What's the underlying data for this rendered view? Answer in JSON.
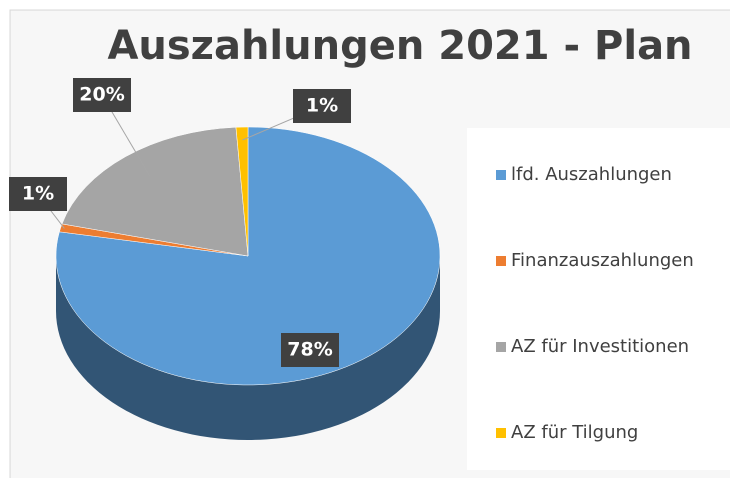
{
  "chart_data": {
    "type": "pie",
    "title": "Auszahlungen 2021 - Plan",
    "categories": [
      "lfd. Auszahlungen",
      "Finanzauszahlungen",
      "AZ für Investitionen",
      "AZ für Tilgung"
    ],
    "values": [
      78,
      1,
      20,
      1
    ],
    "value_labels": [
      "78%",
      "1%",
      "20%",
      "1%"
    ],
    "colors": [
      "#5b9bd5",
      "#ed7d31",
      "#a5a5a5",
      "#ffc000"
    ],
    "legend": "right"
  }
}
